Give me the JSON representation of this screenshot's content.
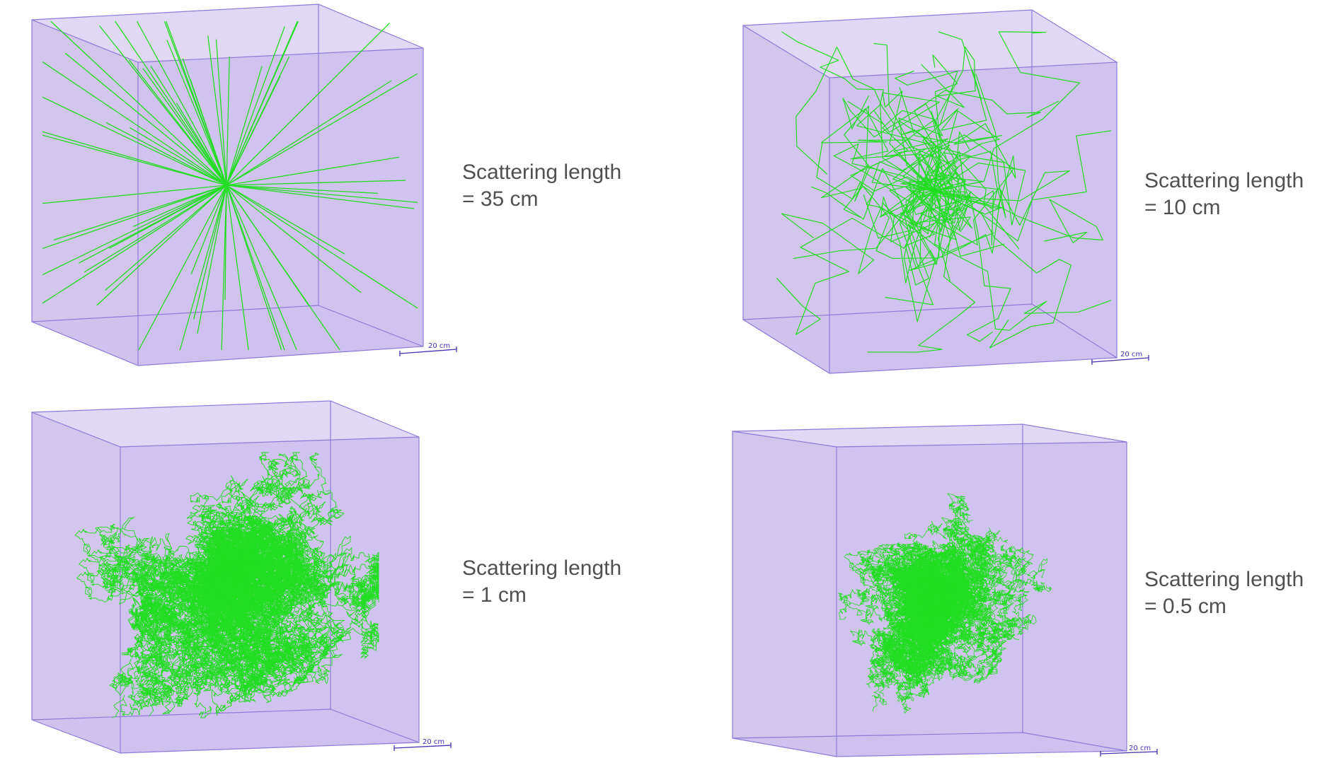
{
  "panels": [
    {
      "caption_line1": "Scattering length",
      "caption_line2": "= 35 cm",
      "scale_bar_label": "20 cm",
      "track_style": "straight-rays"
    },
    {
      "caption_line1": "Scattering length",
      "caption_line2": "= 10 cm",
      "scale_bar_label": "20 cm",
      "track_style": "long-random-walk"
    },
    {
      "caption_line1": "Scattering length",
      "caption_line2": "= 1 cm",
      "scale_bar_label": "20 cm",
      "track_style": "short-random-walk"
    },
    {
      "caption_line1": "Scattering length",
      "caption_line2": "= 0.5 cm",
      "scale_bar_label": "20 cm",
      "track_style": "dense-random-walk"
    }
  ],
  "colors": {
    "box_face": "#c9b8ec",
    "box_edge": "#8d7ad8",
    "track": "#22dd22",
    "caption_text": "#505050",
    "scale_bar": "#4a2fb0"
  }
}
